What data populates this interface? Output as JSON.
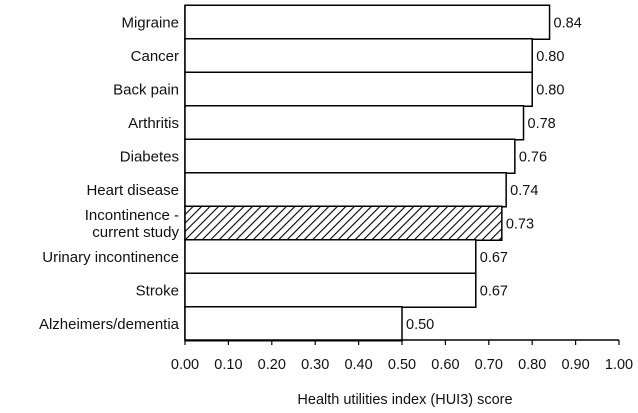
{
  "chart_data": {
    "type": "bar",
    "orientation": "horizontal",
    "categories": [
      [
        "Migraine"
      ],
      [
        "Cancer"
      ],
      [
        "Back pain"
      ],
      [
        "Arthritis"
      ],
      [
        "Diabetes"
      ],
      [
        "Heart disease"
      ],
      [
        "Incontinence -",
        "current study"
      ],
      [
        "Urinary  incontinence"
      ],
      [
        "Stroke"
      ],
      [
        "Alzheimers/dementia"
      ]
    ],
    "values": [
      0.84,
      0.8,
      0.8,
      0.78,
      0.76,
      0.74,
      0.73,
      0.67,
      0.67,
      0.5
    ],
    "value_labels": [
      "0.84",
      "0.80",
      "0.80",
      "0.78",
      "0.76",
      "0.74",
      "0.73",
      "0.67",
      "0.67",
      "0.50"
    ],
    "highlighted_index": 6,
    "xlim": [
      0,
      1
    ],
    "xticks": [
      "0.00",
      "0.10",
      "0.20",
      "0.30",
      "0.40",
      "0.50",
      "0.60",
      "0.70",
      "0.80",
      "0.90",
      "1.00"
    ],
    "xlabel": "Health utilities index (HUI3) score",
    "ylabel": "",
    "title": "",
    "grid": false,
    "colors": {
      "bar_fill": "#ffffff",
      "bar_stroke": "#000000",
      "hatch": "#000000"
    }
  }
}
